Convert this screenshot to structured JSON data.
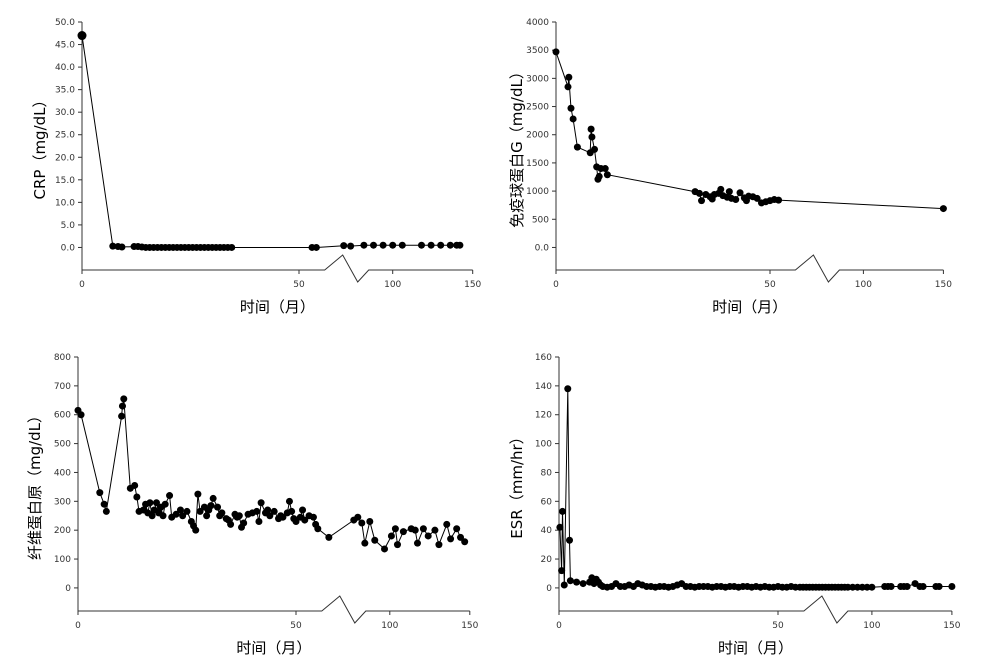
{
  "chart_data": [
    {
      "type": "line",
      "ylabel": "CRP（mg/dL）",
      "xlabel": "时间（月）",
      "color": "#000000",
      "xlim": [
        0,
        150
      ],
      "xticks": [
        0,
        50,
        100,
        150
      ],
      "xbreak": [
        55,
        85
      ],
      "ylim": [
        -5,
        50
      ],
      "yticks": [
        {
          "value": 0,
          "label": "0.0"
        },
        {
          "value": 5,
          "label": "5.0"
        },
        {
          "value": 10,
          "label": "10.0"
        },
        {
          "value": 15,
          "label": "15.0"
        },
        {
          "value": 20,
          "label": "20.0"
        },
        {
          "value": 25,
          "label": "25.0"
        },
        {
          "value": 30,
          "label": "30.0"
        },
        {
          "value": 35,
          "label": "35.0"
        },
        {
          "value": 40,
          "label": "40.0"
        },
        {
          "value": 45,
          "label": "45.0"
        },
        {
          "value": 50,
          "label": "50.0"
        }
      ],
      "x": [
        0,
        7.1,
        8.3,
        9.2,
        12,
        12.9,
        13.8,
        14.7,
        15.6,
        16.5,
        17.4,
        18.3,
        19.2,
        20.1,
        21,
        21.9,
        22.8,
        23.7,
        24.6,
        25.5,
        26.4,
        27.3,
        28.2,
        29.1,
        30,
        30.9,
        31.8,
        32.7,
        33.6,
        34.5,
        53,
        54,
        69.4,
        73.7,
        82,
        88,
        94,
        100,
        106,
        118,
        124,
        130,
        136,
        140,
        142
      ],
      "values": [
        47,
        0.3,
        0.2,
        0.1,
        0.2,
        0.2,
        0.1,
        0,
        0,
        0,
        0,
        0,
        0,
        0,
        0,
        0,
        0,
        0,
        0,
        0,
        0,
        0,
        0,
        0,
        0,
        0,
        0,
        0,
        0,
        0,
        0,
        0,
        0.4,
        0.3,
        0.5,
        0.5,
        0.5,
        0.5,
        0.5,
        0.5,
        0.5,
        0.5,
        0.5,
        0.5,
        0.5
      ]
    },
    {
      "type": "line",
      "ylabel": "免疫球蛋白G（mg/dL）",
      "xlabel": "时间（月）",
      "color": "#000000",
      "xlim": [
        0,
        150
      ],
      "xticks": [
        0,
        50,
        100,
        150
      ],
      "xbreak": [
        55,
        85
      ],
      "ylim": [
        -400,
        4000
      ],
      "yticks": [
        {
          "value": 0,
          "label": "0.0"
        },
        500,
        1000,
        1500,
        2000,
        2500,
        3000,
        3500,
        4000
      ],
      "x": [
        0,
        2.8,
        3,
        3.5,
        4,
        5,
        8,
        8.2,
        8.4,
        9,
        9.5,
        9.8,
        10.1,
        10.5,
        11.5,
        12,
        32.5,
        33.5,
        34,
        35,
        36,
        36.5,
        37,
        38,
        38.5,
        39,
        40,
        40.5,
        41,
        42,
        43,
        44,
        44.5,
        45,
        46,
        47,
        48,
        49,
        50,
        51,
        52,
        150
      ],
      "values": [
        3470,
        2850,
        3020,
        2470,
        2280,
        1780,
        1680,
        2100,
        1960,
        1740,
        1430,
        1210,
        1260,
        1400,
        1400,
        1290,
        990,
        960,
        830,
        940,
        900,
        860,
        940,
        960,
        1030,
        920,
        890,
        990,
        870,
        850,
        970,
        880,
        830,
        910,
        900,
        870,
        790,
        810,
        830,
        850,
        840,
        690
      ]
    },
    {
      "type": "line",
      "ylabel": "纤维蛋白原（mg/dL）",
      "xlabel": "时间（月）",
      "color": "#000000",
      "xlim": [
        0,
        150
      ],
      "xticks": [
        0,
        50,
        100,
        150
      ],
      "xbreak": [
        55,
        85
      ],
      "ylim": [
        -80,
        800
      ],
      "yticks": [
        0,
        100,
        200,
        300,
        400,
        500,
        600,
        700,
        800
      ],
      "x": [
        0,
        0.7,
        5,
        6,
        6.5,
        10,
        10.2,
        10.5,
        12,
        13,
        13.5,
        14,
        15,
        15.5,
        16,
        16.5,
        17,
        17.5,
        18,
        18.5,
        19,
        19.5,
        20,
        21,
        21.5,
        22.5,
        23.5,
        24,
        25,
        26,
        26.5,
        27,
        27.5,
        28,
        29,
        29.5,
        30,
        30.5,
        31,
        32,
        32.5,
        33,
        34,
        34.5,
        35,
        36,
        36.5,
        37,
        37.5,
        38,
        39,
        40,
        41,
        41.5,
        42,
        43,
        43.5,
        44,
        45,
        46,
        46.5,
        47,
        48,
        48.5,
        49,
        49.5,
        50,
        51,
        51.5,
        52,
        53,
        54,
        54.5,
        55,
        61.9,
        77.5,
        80,
        82.5,
        84.4,
        87.5,
        90.6,
        96.7,
        101,
        103.5,
        104.8,
        108.5,
        113.4,
        115.9,
        117.3,
        121,
        124,
        128.2,
        130.7,
        135.6,
        138,
        141.8,
        144.2,
        146.8
      ],
      "values": [
        615,
        600,
        330,
        290,
        265,
        595,
        630,
        655,
        345,
        355,
        315,
        265,
        270,
        290,
        260,
        295,
        250,
        270,
        295,
        260,
        280,
        250,
        290,
        320,
        245,
        255,
        270,
        250,
        265,
        230,
        215,
        200,
        325,
        265,
        280,
        250,
        270,
        285,
        310,
        280,
        250,
        260,
        240,
        235,
        220,
        255,
        245,
        250,
        210,
        225,
        255,
        260,
        265,
        230,
        295,
        260,
        270,
        250,
        265,
        240,
        250,
        245,
        260,
        300,
        265,
        240,
        230,
        245,
        270,
        235,
        250,
        245,
        220,
        205,
        175,
        235,
        245,
        225,
        155,
        230,
        165,
        135,
        180,
        205,
        150,
        195,
        205,
        200,
        155,
        205,
        180,
        200,
        150,
        220,
        170,
        205,
        175,
        160
      ]
    },
    {
      "type": "line",
      "ylabel": "ESR（mm/hr）",
      "xlabel": "时间（月）",
      "color": "#000000",
      "xlim": [
        0,
        150
      ],
      "xticks": [
        0,
        50,
        100,
        150
      ],
      "xbreak": [
        55,
        85
      ],
      "ylim": [
        -16,
        160
      ],
      "yticks": [
        0,
        20,
        40,
        60,
        80,
        100,
        120,
        140,
        160
      ],
      "x": [
        0.2,
        0.6,
        0.8,
        1.2,
        2,
        2.4,
        2.6,
        4,
        5.5,
        7,
        7.5,
        8,
        8.5,
        9,
        9.5,
        10,
        11,
        12,
        13,
        14,
        15,
        16,
        17,
        18,
        19,
        20,
        21,
        22,
        23,
        24,
        25,
        26,
        27,
        28,
        29,
        30,
        31,
        32,
        33,
        34,
        35,
        36,
        37,
        38,
        39,
        40,
        41,
        42,
        43,
        44,
        45,
        46,
        47,
        48,
        49,
        50,
        51,
        52,
        53,
        54,
        55,
        57,
        59,
        61,
        63,
        65,
        67,
        69,
        71,
        73,
        75,
        77,
        79,
        81,
        83,
        85,
        88,
        91,
        94,
        97,
        100,
        108,
        110,
        112,
        118,
        120,
        122,
        127,
        130,
        132,
        140,
        142,
        150
      ],
      "values": [
        42,
        12,
        53,
        2,
        138,
        33,
        5,
        4,
        3,
        4,
        7,
        3,
        6,
        4,
        2,
        1,
        0.5,
        1,
        3,
        1,
        1,
        2,
        1,
        3,
        2,
        1,
        1,
        0.5,
        1,
        1,
        0.5,
        1,
        2,
        3,
        1,
        1,
        0.5,
        1,
        1,
        1,
        0.5,
        1,
        1,
        0.5,
        1,
        1,
        0.5,
        1,
        1,
        0.5,
        1,
        0.5,
        1,
        0.5,
        0.5,
        1,
        0.5,
        0.5,
        1,
        0.5,
        0.5,
        0.5,
        0.5,
        0.5,
        0.5,
        0.5,
        0.5,
        0.5,
        0.5,
        0.5,
        0.5,
        0.5,
        0.5,
        0.5,
        0.5,
        0.5,
        0.5,
        0.5,
        0.5,
        0.5,
        0.5,
        1,
        1,
        1,
        1,
        1,
        1,
        3,
        1,
        1,
        1,
        1,
        1
      ]
    }
  ]
}
